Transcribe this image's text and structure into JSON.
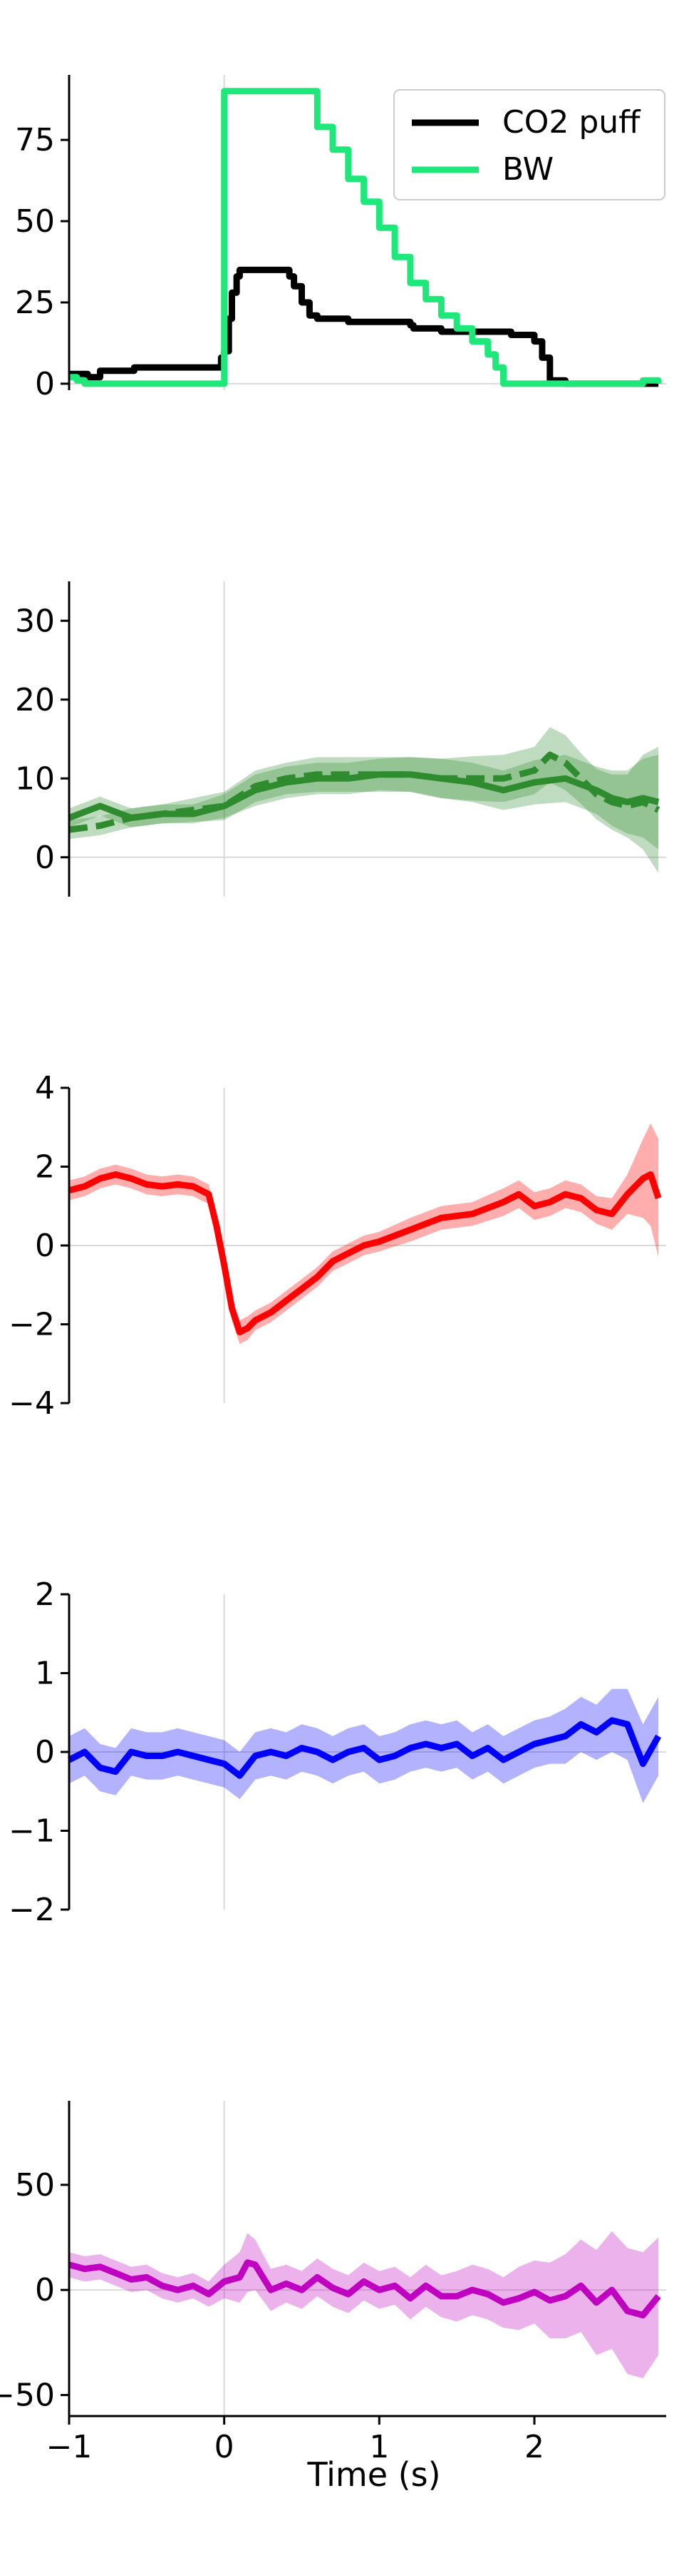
{
  "chart_data": [
    {
      "type": "line",
      "ylim": [
        -2,
        95
      ],
      "yticks": [
        0,
        25,
        50,
        75
      ],
      "series": [
        {
          "name": "CO2 puff",
          "color": "#000000",
          "x": [
            -1.0,
            -0.9,
            -0.88,
            -0.8,
            -0.6,
            -0.58,
            -0.3,
            -0.05,
            -0.02,
            0.0,
            0.03,
            0.05,
            0.08,
            0.1,
            0.4,
            0.42,
            0.45,
            0.5,
            0.55,
            0.6,
            0.7,
            0.8,
            1.0,
            1.2,
            1.22,
            1.4,
            1.6,
            1.8,
            1.85,
            1.9,
            2.0,
            2.05,
            2.1,
            2.2,
            2.5,
            2.7,
            2.8
          ],
          "y": [
            3,
            3,
            2,
            4,
            4,
            5,
            5,
            5,
            8,
            10,
            20,
            28,
            33,
            35,
            35,
            33,
            30,
            25,
            21,
            20,
            20,
            19,
            19,
            18,
            17,
            16,
            16,
            16,
            15,
            15,
            13,
            8,
            1,
            0,
            0,
            0,
            0
          ]
        },
        {
          "name": "BW",
          "color": "#1ee87a",
          "x": [
            -1.0,
            -0.95,
            -0.9,
            0.0,
            0.0,
            0.5,
            0.6,
            0.7,
            0.8,
            0.9,
            1.0,
            1.1,
            1.2,
            1.3,
            1.4,
            1.5,
            1.6,
            1.7,
            1.75,
            1.8,
            1.85,
            2.0,
            2.5,
            2.7,
            2.8
          ],
          "y": [
            2,
            1,
            0,
            0,
            90,
            90,
            79,
            72,
            63,
            56,
            48,
            39,
            31,
            26,
            21,
            17,
            13,
            9,
            5,
            0,
            0,
            0,
            0,
            1,
            0
          ]
        }
      ],
      "legend": "top-right"
    },
    {
      "type": "area",
      "ylim": [
        -5,
        35
      ],
      "yticks": [
        0,
        10,
        20,
        30
      ],
      "series": [
        {
          "color": "#2e8b2e",
          "style": "solid",
          "x": [
            -1.0,
            -0.8,
            -0.6,
            -0.4,
            -0.2,
            0.0,
            0.2,
            0.4,
            0.6,
            0.8,
            1.0,
            1.2,
            1.4,
            1.6,
            1.8,
            2.0,
            2.2,
            2.4,
            2.5,
            2.6,
            2.7,
            2.8
          ],
          "y": [
            5,
            6.5,
            5,
            5.5,
            5.5,
            6.5,
            8.5,
            9.5,
            10,
            10,
            10.5,
            10.5,
            10,
            9.5,
            8.5,
            9.5,
            10,
            8.5,
            7.5,
            7,
            7.5,
            7
          ],
          "band": [
            1.2,
            1.2,
            1.2,
            1.2,
            1.2,
            1.5,
            2,
            2,
            2,
            2,
            2,
            2.2,
            2.5,
            2.5,
            2.5,
            2.8,
            3,
            3,
            3.5,
            4,
            5,
            6
          ]
        },
        {
          "color": "#2e8b2e",
          "style": "dashed",
          "x": [
            -1.0,
            -0.8,
            -0.6,
            -0.4,
            -0.2,
            0.0,
            0.2,
            0.4,
            0.6,
            0.8,
            1.0,
            1.2,
            1.4,
            1.6,
            1.8,
            2.0,
            2.1,
            2.2,
            2.3,
            2.4,
            2.5,
            2.6,
            2.7,
            2.8
          ],
          "y": [
            3.5,
            4,
            5,
            5.5,
            6,
            6.5,
            9,
            10,
            10.5,
            10.5,
            10.5,
            10.5,
            10,
            10,
            10,
            11,
            13,
            12,
            10,
            8,
            7,
            6.5,
            7,
            6
          ],
          "band": [
            1.2,
            1.2,
            1.2,
            1.2,
            1.5,
            1.8,
            2,
            2,
            2.2,
            2.2,
            2.2,
            2.2,
            2.5,
            2.8,
            3,
            3,
            3.5,
            3.5,
            3.2,
            3.2,
            3.5,
            4,
            6,
            8
          ]
        }
      ]
    },
    {
      "type": "area",
      "ylim": [
        -4,
        4
      ],
      "yticks": [
        -4,
        -2,
        0,
        2,
        4
      ],
      "series": [
        {
          "color": "#ff0000",
          "style": "solid",
          "x": [
            -1.0,
            -0.9,
            -0.8,
            -0.7,
            -0.6,
            -0.5,
            -0.4,
            -0.3,
            -0.2,
            -0.1,
            -0.05,
            0.0,
            0.05,
            0.1,
            0.15,
            0.2,
            0.3,
            0.4,
            0.5,
            0.6,
            0.7,
            0.8,
            0.9,
            1.0,
            1.2,
            1.4,
            1.6,
            1.8,
            1.9,
            2.0,
            2.1,
            2.2,
            2.3,
            2.4,
            2.5,
            2.6,
            2.7,
            2.75,
            2.8
          ],
          "y": [
            1.4,
            1.5,
            1.7,
            1.8,
            1.7,
            1.55,
            1.5,
            1.55,
            1.5,
            1.3,
            0.5,
            -0.5,
            -1.6,
            -2.2,
            -2.1,
            -1.9,
            -1.7,
            -1.4,
            -1.1,
            -0.8,
            -0.4,
            -0.2,
            0.0,
            0.1,
            0.4,
            0.7,
            0.8,
            1.1,
            1.3,
            1.0,
            1.1,
            1.3,
            1.2,
            0.9,
            0.8,
            1.3,
            1.7,
            1.8,
            1.2
          ],
          "band": [
            0.25,
            0.25,
            0.25,
            0.25,
            0.25,
            0.25,
            0.25,
            0.25,
            0.25,
            0.25,
            0.3,
            0.3,
            0.3,
            0.3,
            0.3,
            0.25,
            0.25,
            0.25,
            0.25,
            0.25,
            0.25,
            0.25,
            0.25,
            0.25,
            0.3,
            0.3,
            0.3,
            0.35,
            0.35,
            0.35,
            0.35,
            0.35,
            0.35,
            0.35,
            0.4,
            0.5,
            1.0,
            1.3,
            1.5
          ]
        }
      ]
    },
    {
      "type": "area",
      "ylim": [
        -2,
        2
      ],
      "yticks": [
        -2,
        -1,
        0,
        1,
        2
      ],
      "series": [
        {
          "color": "#0000ff",
          "style": "solid",
          "x": [
            -1.0,
            -0.9,
            -0.8,
            -0.7,
            -0.6,
            -0.5,
            -0.4,
            -0.3,
            -0.2,
            -0.1,
            0.0,
            0.1,
            0.2,
            0.3,
            0.4,
            0.5,
            0.6,
            0.7,
            0.8,
            0.9,
            1.0,
            1.1,
            1.2,
            1.3,
            1.4,
            1.5,
            1.6,
            1.7,
            1.8,
            1.9,
            2.0,
            2.1,
            2.2,
            2.3,
            2.4,
            2.5,
            2.6,
            2.7,
            2.8
          ],
          "y": [
            -0.1,
            0.0,
            -0.2,
            -0.25,
            0.0,
            -0.05,
            -0.05,
            0.0,
            -0.05,
            -0.1,
            -0.15,
            -0.3,
            -0.05,
            0.0,
            -0.05,
            0.05,
            0.0,
            -0.1,
            0.0,
            0.05,
            -0.1,
            -0.05,
            0.05,
            0.1,
            0.05,
            0.1,
            -0.05,
            0.05,
            -0.1,
            0.0,
            0.1,
            0.15,
            0.2,
            0.35,
            0.25,
            0.4,
            0.35,
            -0.15,
            0.2
          ],
          "band": [
            0.3,
            0.3,
            0.3,
            0.3,
            0.3,
            0.3,
            0.3,
            0.3,
            0.3,
            0.3,
            0.3,
            0.3,
            0.3,
            0.3,
            0.3,
            0.3,
            0.3,
            0.3,
            0.3,
            0.3,
            0.3,
            0.3,
            0.3,
            0.3,
            0.3,
            0.3,
            0.3,
            0.3,
            0.3,
            0.3,
            0.3,
            0.3,
            0.35,
            0.35,
            0.35,
            0.4,
            0.45,
            0.5,
            0.5
          ]
        }
      ]
    },
    {
      "type": "area",
      "ylim": [
        -60,
        90
      ],
      "yticks": [
        -50,
        0,
        50
      ],
      "xticks": [
        -1,
        0,
        1,
        2
      ],
      "xlabel": "Time (s)",
      "series": [
        {
          "color": "#c000c0",
          "style": "solid",
          "x": [
            -1.0,
            -0.9,
            -0.8,
            -0.7,
            -0.6,
            -0.5,
            -0.4,
            -0.3,
            -0.2,
            -0.1,
            0.0,
            0.1,
            0.15,
            0.2,
            0.3,
            0.4,
            0.5,
            0.6,
            0.7,
            0.8,
            0.9,
            1.0,
            1.1,
            1.2,
            1.3,
            1.4,
            1.5,
            1.6,
            1.7,
            1.8,
            1.9,
            2.0,
            2.1,
            2.2,
            2.3,
            2.4,
            2.5,
            2.6,
            2.7,
            2.8
          ],
          "y": [
            12,
            10,
            11,
            8,
            5,
            6,
            2,
            0,
            2,
            -2,
            4,
            6,
            13,
            12,
            0,
            3,
            0,
            6,
            1,
            -2,
            4,
            0,
            2,
            -4,
            2,
            -3,
            -3,
            0,
            -2,
            -6,
            -4,
            -1,
            -5,
            -3,
            2,
            -6,
            0,
            -10,
            -12,
            -3
          ],
          "band": [
            6,
            6,
            6,
            6,
            6,
            6,
            6,
            6,
            6,
            6,
            8,
            12,
            14,
            12,
            10,
            9,
            9,
            9,
            9,
            9,
            9,
            9,
            9,
            10,
            10,
            10,
            12,
            12,
            12,
            12,
            15,
            15,
            18,
            20,
            22,
            25,
            28,
            30,
            30,
            28
          ]
        }
      ]
    }
  ]
}
